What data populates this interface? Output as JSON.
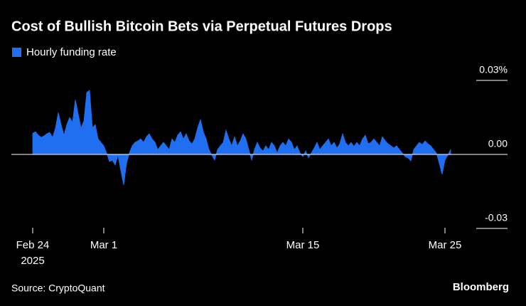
{
  "chart_data": {
    "type": "area",
    "title": "Cost of Bullish Bitcoin Bets via Perpetual Futures Drops",
    "source": "Source: CryptoQuant",
    "brand": "Bloomberg",
    "x_year": "2025",
    "xlim": [
      -1.5,
      30.7
    ],
    "xticks": [
      {
        "value": 0,
        "label": "Feb 24"
      },
      {
        "value": 5,
        "label": "Mar 1"
      },
      {
        "value": 19,
        "label": "Mar 15"
      },
      {
        "value": 29,
        "label": "Mar 25"
      }
    ],
    "ylim": [
      -0.033,
      0.033
    ],
    "yticks": [
      {
        "value": 0.03,
        "label": "0.03%"
      },
      {
        "value": 0,
        "label": "0.00"
      },
      {
        "value": -0.03,
        "label": "-0.03"
      }
    ],
    "x": [
      0,
      0.2,
      0.4,
      0.6,
      0.8,
      1,
      1.2,
      1.4,
      1.6,
      1.8,
      2,
      2.2,
      2.4,
      2.6,
      2.8,
      3,
      3.2,
      3.4,
      3.6,
      3.8,
      4,
      4.2,
      4.4,
      4.6,
      4.8,
      5,
      5.2,
      5.4,
      5.6,
      5.8,
      6,
      6.2,
      6.4,
      6.6,
      6.8,
      7,
      7.2,
      7.4,
      7.6,
      7.8,
      8,
      8.2,
      8.4,
      8.6,
      8.8,
      9,
      9.2,
      9.4,
      9.6,
      9.8,
      10,
      10.2,
      10.4,
      10.6,
      10.8,
      11,
      11.2,
      11.4,
      11.6,
      11.8,
      12,
      12.2,
      12.4,
      12.6,
      12.8,
      13,
      13.2,
      13.4,
      13.6,
      13.8,
      14,
      14.2,
      14.4,
      14.6,
      14.8,
      15,
      15.2,
      15.4,
      15.6,
      15.8,
      16,
      16.2,
      16.4,
      16.6,
      16.8,
      17,
      17.2,
      17.4,
      17.6,
      17.8,
      18,
      18.2,
      18.4,
      18.6,
      18.8,
      19,
      19.2,
      19.4,
      19.6,
      19.8,
      20,
      20.2,
      20.4,
      20.6,
      20.8,
      21,
      21.2,
      21.4,
      21.6,
      21.8,
      22,
      22.2,
      22.4,
      22.6,
      22.8,
      23,
      23.2,
      23.4,
      23.6,
      23.8,
      24,
      24.2,
      24.4,
      24.6,
      24.8,
      25,
      25.2,
      25.4,
      25.6,
      25.8,
      26,
      26.2,
      26.4,
      26.6,
      26.8,
      27,
      27.2,
      27.4,
      27.6,
      27.8,
      28,
      28.2,
      28.4,
      28.6,
      28.8,
      29,
      29.2,
      29.4
    ],
    "series": [
      {
        "name": "Hourly funding rate",
        "color": "#1f6ff0",
        "values": [
          0.0086,
          0.0092,
          0.0078,
          0.0069,
          0.0075,
          0.0084,
          0.0089,
          0.0069,
          0.0107,
          0.017,
          0.0121,
          0.0078,
          0.0121,
          0.015,
          0.013,
          0.0222,
          0.0164,
          0.0107,
          0.0135,
          0.0251,
          0.026,
          0.0107,
          0.0121,
          0.0063,
          0.0049,
          0.0035,
          0.0006,
          -0.0029,
          -0.0023,
          -0.0043,
          -0.0003,
          -0.0066,
          -0.0124,
          -0.0037,
          0.0006,
          0.0035,
          0.0049,
          0.0055,
          0.0063,
          0.0049,
          0.0072,
          0.0084,
          0.0063,
          0.0049,
          0.002,
          0.0035,
          0.0049,
          0.0035,
          0.002,
          0.0063,
          0.0049,
          0.0078,
          0.0092,
          0.0063,
          0.0084,
          0.0055,
          0.0043,
          0.0063,
          0.0107,
          0.0141,
          0.0092,
          0.0063,
          0.002,
          -0.0003,
          -0.0023,
          0.002,
          0.0035,
          0.0049,
          0.0098,
          0.0063,
          0.0035,
          0.0072,
          0.0035,
          0.0055,
          0.0084,
          0.0063,
          0.002,
          -0.0023,
          0.002,
          0.0049,
          0.0026,
          0.0014,
          0.0035,
          0.002,
          0.0049,
          0.0035,
          0.0006,
          0.0035,
          0.0049,
          0.0035,
          0.0063,
          0.0049,
          0.002,
          0.0035,
          0.0006,
          -0.0009,
          0.0014,
          -0.0014,
          0.0006,
          0.0026,
          0.0049,
          0.002,
          0.0035,
          0.0049,
          0.0063,
          0.0035,
          0.0049,
          0.0026,
          0.0043,
          0.0084,
          0.0049,
          0.0035,
          0.0049,
          0.0032,
          0.0049,
          0.0035,
          0.0063,
          0.0078,
          0.0043,
          0.0049,
          0.0063,
          0.0049,
          0.0035,
          0.0072,
          0.0055,
          0.0043,
          0.0035,
          0.0026,
          0.0035,
          0.002,
          0.0006,
          -0.0009,
          -0.0014,
          -0.0026,
          0.002,
          0.0035,
          0.0049,
          0.004,
          0.0055,
          0.0043,
          0.0035,
          0.002,
          0.0006,
          -0.0037,
          -0.0081,
          -0.0023,
          -0.0003,
          0.002
        ]
      }
    ]
  }
}
